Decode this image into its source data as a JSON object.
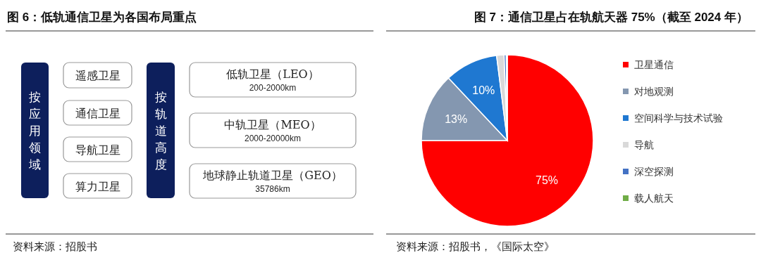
{
  "chart_data": [
    {
      "type": "other",
      "title": "图 6：低轨通信卫星为各国布局重点",
      "annotations": [
        "按应用领域",
        "遥感卫星",
        "通信卫星",
        "导航卫星",
        "算力卫星",
        "按轨道高度",
        "低轨卫星（LEO）\n200-2000km",
        "中轨卫星（MEO）\n2000-20000km",
        "地球静止轨道卫星（GEO）\n35786km",
        "资料来源：招股书"
      ]
    },
    {
      "type": "pie",
      "title": "图 7：通信卫星占在轨航天器 75%（截至 2024 年）",
      "categories": [
        "卫星通信",
        "对地观测",
        "空间科学与技术试验",
        "导航",
        "深空探测",
        "载人航天"
      ],
      "values": [
        75,
        13,
        10,
        1.4,
        0.4,
        0.2
      ],
      "colors": [
        "#ff0000",
        "#8497b0",
        "#1f78d1",
        "#d9d9d9",
        "#4472c4",
        "#70ad47"
      ],
      "value_labels": [
        "75%",
        "13%",
        "10%",
        null,
        null,
        null
      ],
      "legend": "right",
      "annotations": [
        "资料来源：招股书，《国际太空》"
      ]
    }
  ]
}
